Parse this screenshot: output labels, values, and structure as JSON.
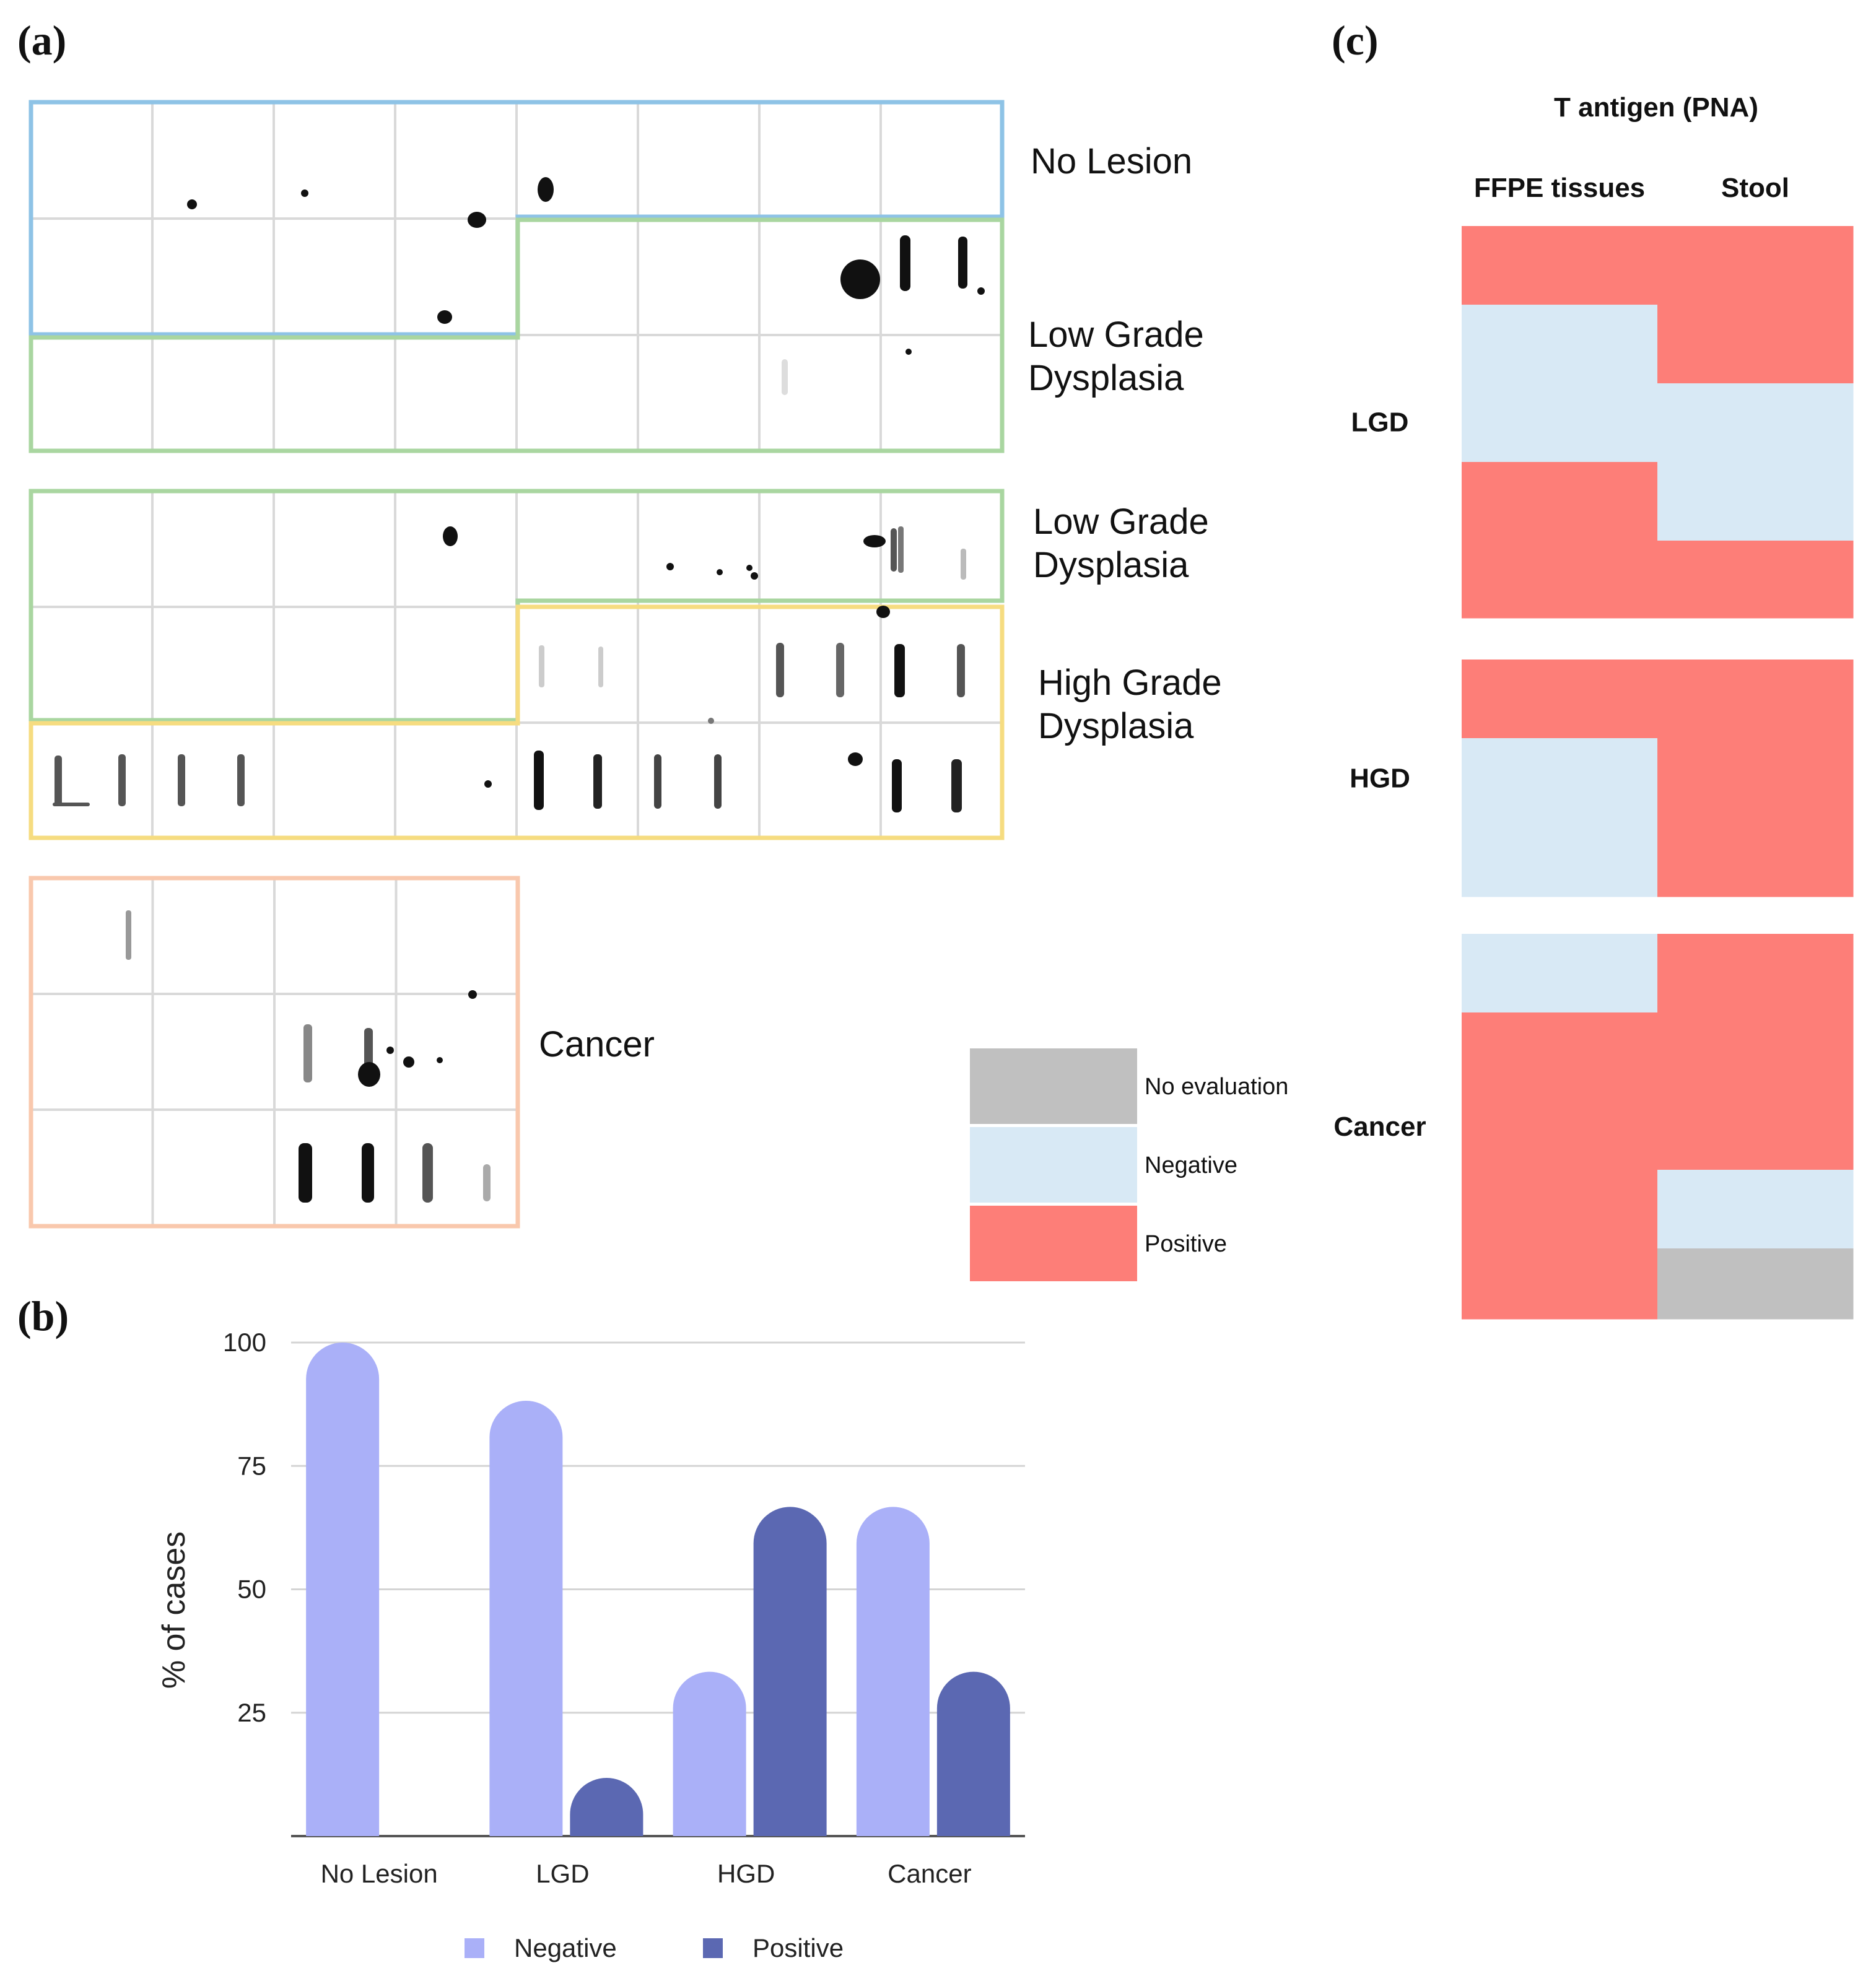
{
  "panels": {
    "a": "(a)",
    "b": "(b)",
    "c": "(c)"
  },
  "panel_a": {
    "labels": {
      "no_lesion": "No Lesion",
      "lgd1_l1": "Low Grade",
      "lgd1_l2": "Dysplasia",
      "lgd2_l1": "Low Grade",
      "lgd2_l2": "Dysplasia",
      "hgd_l1": "High Grade",
      "hgd_l2": "Dysplasia",
      "cancer": "Cancer"
    },
    "colors": {
      "no_lesion": "#8ec3e6",
      "lgd": "#a9d6a0",
      "hgd": "#f6dc80",
      "cancer": "#f9c8ad",
      "grid": "#d9d9d9",
      "spot": "#111111"
    }
  },
  "chart_data": [
    {
      "type": "bar",
      "title": "",
      "xlabel": "",
      "ylabel": "% of cases",
      "categories": [
        "No Lesion",
        "LGD",
        "HGD",
        "Cancer"
      ],
      "ylim": [
        0,
        100
      ],
      "yticks": [
        25,
        50,
        75,
        100
      ],
      "series": [
        {
          "name": "Negative",
          "color": "#aab0f8",
          "values": [
            100,
            88.2,
            33.3,
            66.7
          ]
        },
        {
          "name": "Positive",
          "color": "#5b68b2",
          "values": [
            0,
            11.8,
            66.7,
            33.3
          ]
        }
      ],
      "legend": "bottom-center"
    },
    {
      "type": "heatmap",
      "title": "T antigen (PNA)",
      "columns": [
        "FFPE tissues",
        "Stool"
      ],
      "groups": [
        {
          "label": "LGD",
          "rows": [
            [
              "Positive",
              "Positive"
            ],
            [
              "Negative",
              "Positive"
            ],
            [
              "Negative",
              "Negative"
            ],
            [
              "Positive",
              "Negative"
            ],
            [
              "Positive",
              "Positive"
            ]
          ]
        },
        {
          "label": "HGD",
          "rows": [
            [
              "Positive",
              "Positive"
            ],
            [
              "Negative",
              "Positive"
            ],
            [
              "Negative",
              "Positive"
            ]
          ]
        },
        {
          "label": "Cancer",
          "rows": [
            [
              "Negative",
              "Positive"
            ],
            [
              "Positive",
              "Positive"
            ],
            [
              "Positive",
              "Positive"
            ],
            [
              "Positive",
              "Negative"
            ],
            [
              "Positive",
              "No evaluation"
            ]
          ]
        }
      ],
      "legend": [
        {
          "label": "No evaluation",
          "color": "#c0c0c0"
        },
        {
          "label": "Negative",
          "color": "#d8e9f5"
        },
        {
          "label": "Positive",
          "color": "#fd7e78"
        }
      ]
    }
  ]
}
